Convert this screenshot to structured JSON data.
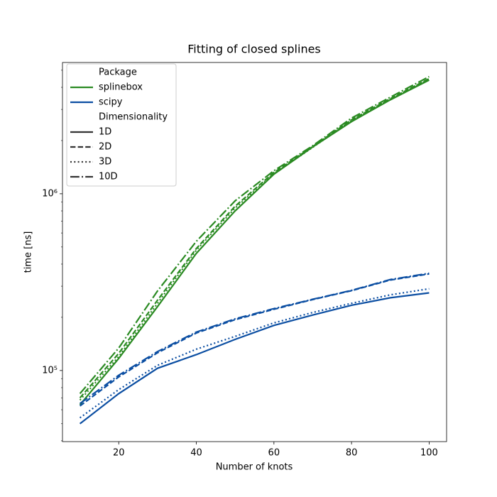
{
  "chart_data": {
    "type": "line",
    "title": "Fitting of closed splines",
    "xlabel": "Number of knots",
    "ylabel": "time [ns]",
    "x": [
      10,
      20,
      30,
      40,
      50,
      60,
      70,
      80,
      90,
      100
    ],
    "xlim": [
      5.5,
      104.5
    ],
    "xticks": [
      20,
      40,
      60,
      80,
      100
    ],
    "ylog": true,
    "ylim": [
      39600,
      5530000
    ],
    "yticks": [
      {
        "value": 100000,
        "label": "10⁵"
      },
      {
        "value": 1000000,
        "label": "10⁶"
      }
    ],
    "yminorticks": [
      40000,
      50000,
      60000,
      70000,
      80000,
      90000,
      200000,
      300000,
      400000,
      500000,
      600000,
      700000,
      800000,
      900000,
      2000000,
      3000000,
      4000000,
      5000000
    ],
    "grid": false,
    "legend": {
      "loc": "upper left",
      "hue_title": "Package",
      "hue": [
        {
          "name": "splinebox",
          "color": "#2a8a22"
        },
        {
          "name": "scipy",
          "color": "#0b4ea2"
        }
      ],
      "style_title": "Dimensionality",
      "styles": [
        {
          "name": "1D",
          "dash": "solid"
        },
        {
          "name": "2D",
          "dash": "dashed"
        },
        {
          "name": "3D",
          "dash": "dotted"
        },
        {
          "name": "10D",
          "dash": "dashdot"
        }
      ]
    },
    "series": [
      {
        "hue": 0,
        "style": 0,
        "values": [
          64000,
          117000,
          230000,
          460000,
          800000,
          1290000,
          1840000,
          2560000,
          3400000,
          4400000
        ]
      },
      {
        "hue": 0,
        "style": 1,
        "values": [
          70000,
          125000,
          250000,
          490000,
          850000,
          1320000,
          1850000,
          2620000,
          3450000,
          4480000
        ]
      },
      {
        "hue": 0,
        "style": 2,
        "values": [
          68000,
          120000,
          240000,
          480000,
          830000,
          1300000,
          1830000,
          2600000,
          3420000,
          4450000
        ]
      },
      {
        "hue": 0,
        "style": 3,
        "values": [
          74000,
          134000,
          282000,
          538000,
          912000,
          1350000,
          1870000,
          2680000,
          3520000,
          4600000
        ]
      },
      {
        "hue": 1,
        "style": 0,
        "values": [
          50000,
          74000,
          103000,
          123000,
          150000,
          180000,
          206000,
          234000,
          258000,
          275000
        ]
      },
      {
        "hue": 1,
        "style": 1,
        "values": [
          63000,
          92000,
          126000,
          163000,
          194000,
          222000,
          252000,
          283000,
          325000,
          352000
        ]
      },
      {
        "hue": 1,
        "style": 2,
        "values": [
          54000,
          78000,
          107000,
          132000,
          156000,
          186000,
          213000,
          240000,
          268000,
          290000
        ]
      },
      {
        "hue": 1,
        "style": 3,
        "values": [
          65000,
          94000,
          128000,
          165000,
          196000,
          224000,
          253000,
          284000,
          327000,
          355000
        ]
      }
    ]
  }
}
